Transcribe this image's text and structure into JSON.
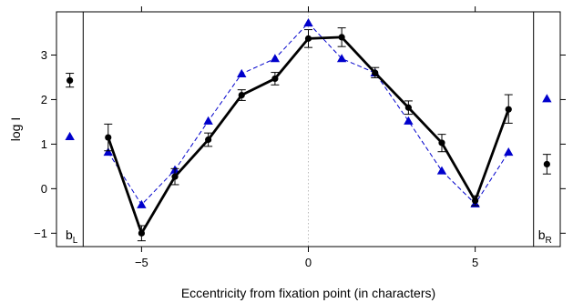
{
  "chart_data": {
    "type": "line",
    "title": "",
    "xlabel": "Eccentricity from fixation point (in characters)",
    "ylabel": "log I",
    "xlim": [
      -7.55,
      7.55
    ],
    "ylim": [
      -1.3,
      3.97
    ],
    "x_inner_range": [
      -6.75,
      6.75
    ],
    "x_ticks": [
      -5,
      0,
      5
    ],
    "x_tick_labels": [
      "−5",
      "0",
      "5"
    ],
    "y_ticks": [
      -1,
      0,
      1,
      2,
      3
    ],
    "y_tick_labels": [
      "−1",
      "0",
      "1",
      "2",
      "3"
    ],
    "grid": false,
    "reference_line_x": 0,
    "series": [
      {
        "style": "solid-black-line-circles",
        "color": "#000000",
        "x": [
          -6,
          -5,
          -4,
          -3,
          -2,
          -1,
          0,
          1,
          2,
          3,
          4,
          5,
          6
        ],
        "y": [
          1.15,
          -1.0,
          0.27,
          1.1,
          2.1,
          2.47,
          3.37,
          3.4,
          2.6,
          1.82,
          1.03,
          -0.27,
          1.78
        ],
        "err_low": [
          0.85,
          -1.17,
          0.09,
          0.95,
          1.98,
          2.33,
          3.17,
          3.19,
          2.49,
          1.67,
          0.83,
          -0.38,
          1.47
        ],
        "err_high": [
          1.45,
          -0.83,
          0.45,
          1.25,
          2.22,
          2.61,
          3.57,
          3.61,
          2.72,
          1.97,
          1.22,
          -0.16,
          2.11
        ]
      },
      {
        "style": "dashed-blue-line-triangles",
        "color": "#0000cc",
        "x": [
          -6,
          -5,
          -4,
          -3,
          -2,
          -1,
          0,
          1,
          2,
          3,
          4,
          5,
          6
        ],
        "y": [
          0.82,
          -0.36,
          0.42,
          1.52,
          2.58,
          2.92,
          3.72,
          2.92,
          2.6,
          1.52,
          0.4,
          -0.34,
          0.82
        ]
      }
    ],
    "side_panels": {
      "left": {
        "label": "b",
        "subscript": "L",
        "circle": {
          "y": 2.43,
          "err_low": 2.28,
          "err_high": 2.59
        },
        "triangle": {
          "y": 1.17
        }
      },
      "right": {
        "label": "b",
        "subscript": "R",
        "circle": {
          "y": 0.55,
          "err_low": 0.33,
          "err_high": 0.77
        },
        "triangle": {
          "y": 2.02
        }
      }
    }
  }
}
